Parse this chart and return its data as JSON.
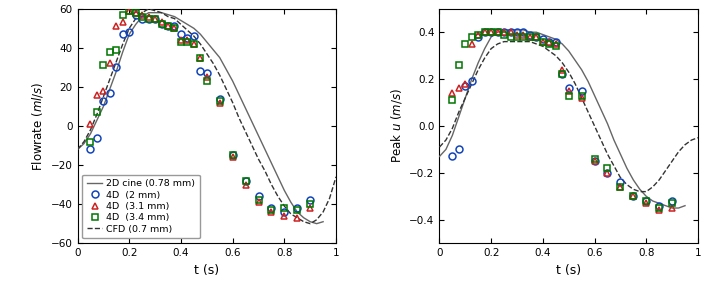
{
  "left_ylabel": "Flowrate $(ml/s)$",
  "right_ylabel": "Peak $u$ $(m/s)$",
  "xlabel": "t (s)",
  "xlim": [
    0,
    1.0
  ],
  "left_ylim": [
    -60,
    60
  ],
  "right_ylim": [
    -0.5,
    0.5
  ],
  "left_yticks": [
    -60,
    -40,
    -20,
    0,
    20,
    40,
    60
  ],
  "right_yticks": [
    -0.4,
    -0.2,
    0.0,
    0.2,
    0.4
  ],
  "xticks": [
    0,
    0.2,
    0.4,
    0.6,
    0.8,
    1.0
  ],
  "cine_color": "#666666",
  "cfd_color": "#333333",
  "blue_color": "#1144bb",
  "red_color": "#cc2222",
  "green_color": "#007700",
  "legend_entries": [
    "2D cine (0.78 mm)",
    "4D  (2 mm)",
    "4D  (3.1 mm)",
    "4D  (3.4 mm)",
    "CFD (0.7 mm)"
  ],
  "cine_t": [
    0.0,
    0.025,
    0.05,
    0.075,
    0.1,
    0.125,
    0.15,
    0.175,
    0.2,
    0.225,
    0.25,
    0.275,
    0.3,
    0.325,
    0.35,
    0.375,
    0.4,
    0.425,
    0.45,
    0.475,
    0.5,
    0.525,
    0.55,
    0.575,
    0.6,
    0.625,
    0.65,
    0.675,
    0.7,
    0.725,
    0.75,
    0.775,
    0.8,
    0.825,
    0.85,
    0.875,
    0.9,
    0.925,
    0.95
  ],
  "cine_flow": [
    -12,
    -9,
    -4,
    3,
    10,
    19,
    28,
    38,
    47,
    52,
    56,
    58,
    58,
    58,
    57,
    56,
    54,
    52,
    50,
    47,
    43,
    39,
    35,
    29,
    23,
    16,
    9,
    2,
    -5,
    -12,
    -19,
    -26,
    -33,
    -39,
    -44,
    -47,
    -49,
    -50,
    -49
  ],
  "cfd_t": [
    0.0,
    0.025,
    0.05,
    0.075,
    0.1,
    0.125,
    0.15,
    0.175,
    0.2,
    0.225,
    0.25,
    0.275,
    0.3,
    0.325,
    0.35,
    0.375,
    0.4,
    0.425,
    0.45,
    0.475,
    0.5,
    0.525,
    0.55,
    0.575,
    0.6,
    0.625,
    0.65,
    0.675,
    0.7,
    0.725,
    0.75,
    0.775,
    0.8,
    0.825,
    0.85,
    0.875,
    0.9,
    0.925,
    0.95,
    0.975,
    1.0
  ],
  "cfd_flow": [
    -12,
    -8,
    -2,
    6,
    15,
    24,
    33,
    42,
    50,
    55,
    58,
    60,
    59,
    58,
    56,
    55,
    52,
    49,
    46,
    42,
    37,
    32,
    26,
    19,
    12,
    4,
    -3,
    -10,
    -17,
    -23,
    -30,
    -36,
    -41,
    -45,
    -47,
    -49,
    -50,
    -48,
    -44,
    -37,
    -26
  ],
  "blue_t_flow": [
    0.05,
    0.075,
    0.1,
    0.125,
    0.15,
    0.175,
    0.2,
    0.225,
    0.25,
    0.275,
    0.3,
    0.325,
    0.35,
    0.375,
    0.4,
    0.425,
    0.45,
    0.475,
    0.5,
    0.55,
    0.6,
    0.65,
    0.7,
    0.75,
    0.8,
    0.85,
    0.9
  ],
  "blue_flow": [
    -12,
    -6,
    13,
    17,
    30,
    47,
    48,
    57,
    55,
    55,
    55,
    52,
    51,
    51,
    47,
    45,
    46,
    28,
    27,
    14,
    -15,
    -28,
    -36,
    -42,
    -44,
    -42,
    -38
  ],
  "red_t_flow": [
    0.05,
    0.075,
    0.1,
    0.125,
    0.15,
    0.175,
    0.2,
    0.225,
    0.25,
    0.275,
    0.3,
    0.325,
    0.35,
    0.375,
    0.4,
    0.425,
    0.45,
    0.475,
    0.5,
    0.55,
    0.6,
    0.65,
    0.7,
    0.75,
    0.8,
    0.85,
    0.9
  ],
  "red_flow": [
    1,
    16,
    18,
    32,
    51,
    53,
    59,
    58,
    57,
    56,
    55,
    53,
    51,
    50,
    44,
    44,
    42,
    35,
    25,
    12,
    -16,
    -30,
    -39,
    -44,
    -46,
    -47,
    -42
  ],
  "green_t_flow": [
    0.05,
    0.075,
    0.1,
    0.125,
    0.15,
    0.175,
    0.2,
    0.225,
    0.25,
    0.275,
    0.3,
    0.325,
    0.35,
    0.375,
    0.4,
    0.425,
    0.45,
    0.475,
    0.5,
    0.55,
    0.6,
    0.65,
    0.7,
    0.75,
    0.8,
    0.85,
    0.9
  ],
  "green_flow": [
    -8,
    7,
    31,
    38,
    39,
    57,
    59,
    58,
    56,
    55,
    55,
    52,
    51,
    50,
    43,
    43,
    42,
    35,
    23,
    13,
    -15,
    -28,
    -38,
    -43,
    -42,
    -43,
    -40
  ],
  "cine_t_vel": [
    0.0,
    0.025,
    0.05,
    0.075,
    0.1,
    0.125,
    0.15,
    0.175,
    0.2,
    0.225,
    0.25,
    0.275,
    0.3,
    0.325,
    0.35,
    0.375,
    0.4,
    0.425,
    0.45,
    0.475,
    0.5,
    0.525,
    0.55,
    0.575,
    0.6,
    0.625,
    0.65,
    0.675,
    0.7,
    0.725,
    0.75,
    0.775,
    0.8,
    0.825,
    0.85,
    0.875,
    0.9,
    0.925,
    0.95
  ],
  "cine_vel": [
    -0.13,
    -0.1,
    -0.04,
    0.04,
    0.12,
    0.2,
    0.27,
    0.33,
    0.38,
    0.4,
    0.41,
    0.41,
    0.41,
    0.41,
    0.4,
    0.4,
    0.39,
    0.38,
    0.37,
    0.35,
    0.32,
    0.28,
    0.24,
    0.19,
    0.13,
    0.07,
    0.01,
    -0.06,
    -0.12,
    -0.18,
    -0.23,
    -0.27,
    -0.3,
    -0.32,
    -0.33,
    -0.34,
    -0.35,
    -0.35,
    -0.34
  ],
  "cfd_t_vel": [
    0.0,
    0.025,
    0.05,
    0.075,
    0.1,
    0.125,
    0.15,
    0.175,
    0.2,
    0.225,
    0.25,
    0.275,
    0.3,
    0.325,
    0.35,
    0.375,
    0.4,
    0.425,
    0.45,
    0.475,
    0.5,
    0.525,
    0.55,
    0.575,
    0.6,
    0.625,
    0.65,
    0.675,
    0.7,
    0.725,
    0.75,
    0.775,
    0.8,
    0.825,
    0.85,
    0.875,
    0.9,
    0.925,
    0.95,
    0.975,
    1.0
  ],
  "cfd_vel": [
    -0.09,
    -0.06,
    -0.01,
    0.06,
    0.12,
    0.18,
    0.24,
    0.29,
    0.33,
    0.35,
    0.36,
    0.36,
    0.36,
    0.36,
    0.36,
    0.35,
    0.34,
    0.32,
    0.3,
    0.27,
    0.23,
    0.18,
    0.12,
    0.06,
    0.0,
    -0.06,
    -0.12,
    -0.17,
    -0.22,
    -0.25,
    -0.27,
    -0.28,
    -0.28,
    -0.26,
    -0.23,
    -0.19,
    -0.15,
    -0.11,
    -0.08,
    -0.06,
    -0.05
  ],
  "blue_t_vel": [
    0.05,
    0.075,
    0.1,
    0.125,
    0.15,
    0.175,
    0.2,
    0.225,
    0.25,
    0.275,
    0.3,
    0.325,
    0.35,
    0.375,
    0.4,
    0.425,
    0.45,
    0.475,
    0.5,
    0.55,
    0.6,
    0.65,
    0.7,
    0.75,
    0.8,
    0.85,
    0.9
  ],
  "blue_vel": [
    -0.13,
    -0.1,
    0.17,
    0.19,
    0.38,
    0.4,
    0.4,
    0.4,
    0.4,
    0.4,
    0.4,
    0.4,
    0.39,
    0.38,
    0.37,
    0.36,
    0.36,
    0.22,
    0.16,
    0.15,
    -0.15,
    -0.2,
    -0.24,
    -0.3,
    -0.32,
    -0.34,
    -0.32
  ],
  "red_t_vel": [
    0.05,
    0.075,
    0.1,
    0.125,
    0.15,
    0.175,
    0.2,
    0.225,
    0.25,
    0.275,
    0.3,
    0.325,
    0.35,
    0.375,
    0.4,
    0.425,
    0.45,
    0.475,
    0.5,
    0.55,
    0.6,
    0.65,
    0.7,
    0.75,
    0.8,
    0.85,
    0.9
  ],
  "red_vel": [
    0.14,
    0.16,
    0.18,
    0.35,
    0.39,
    0.4,
    0.4,
    0.4,
    0.4,
    0.4,
    0.39,
    0.39,
    0.38,
    0.38,
    0.36,
    0.36,
    0.35,
    0.24,
    0.15,
    0.12,
    -0.15,
    -0.2,
    -0.26,
    -0.3,
    -0.33,
    -0.36,
    -0.35
  ],
  "green_t_vel": [
    0.05,
    0.075,
    0.1,
    0.125,
    0.15,
    0.175,
    0.2,
    0.225,
    0.25,
    0.275,
    0.3,
    0.325,
    0.35,
    0.375,
    0.4,
    0.425,
    0.45,
    0.475,
    0.5,
    0.55,
    0.6,
    0.65,
    0.7,
    0.75,
    0.8,
    0.85,
    0.9
  ],
  "green_vel": [
    0.11,
    0.26,
    0.35,
    0.38,
    0.39,
    0.4,
    0.4,
    0.4,
    0.39,
    0.38,
    0.38,
    0.38,
    0.38,
    0.38,
    0.36,
    0.35,
    0.34,
    0.22,
    0.13,
    0.13,
    -0.14,
    -0.18,
    -0.26,
    -0.3,
    -0.32,
    -0.35,
    -0.33
  ]
}
